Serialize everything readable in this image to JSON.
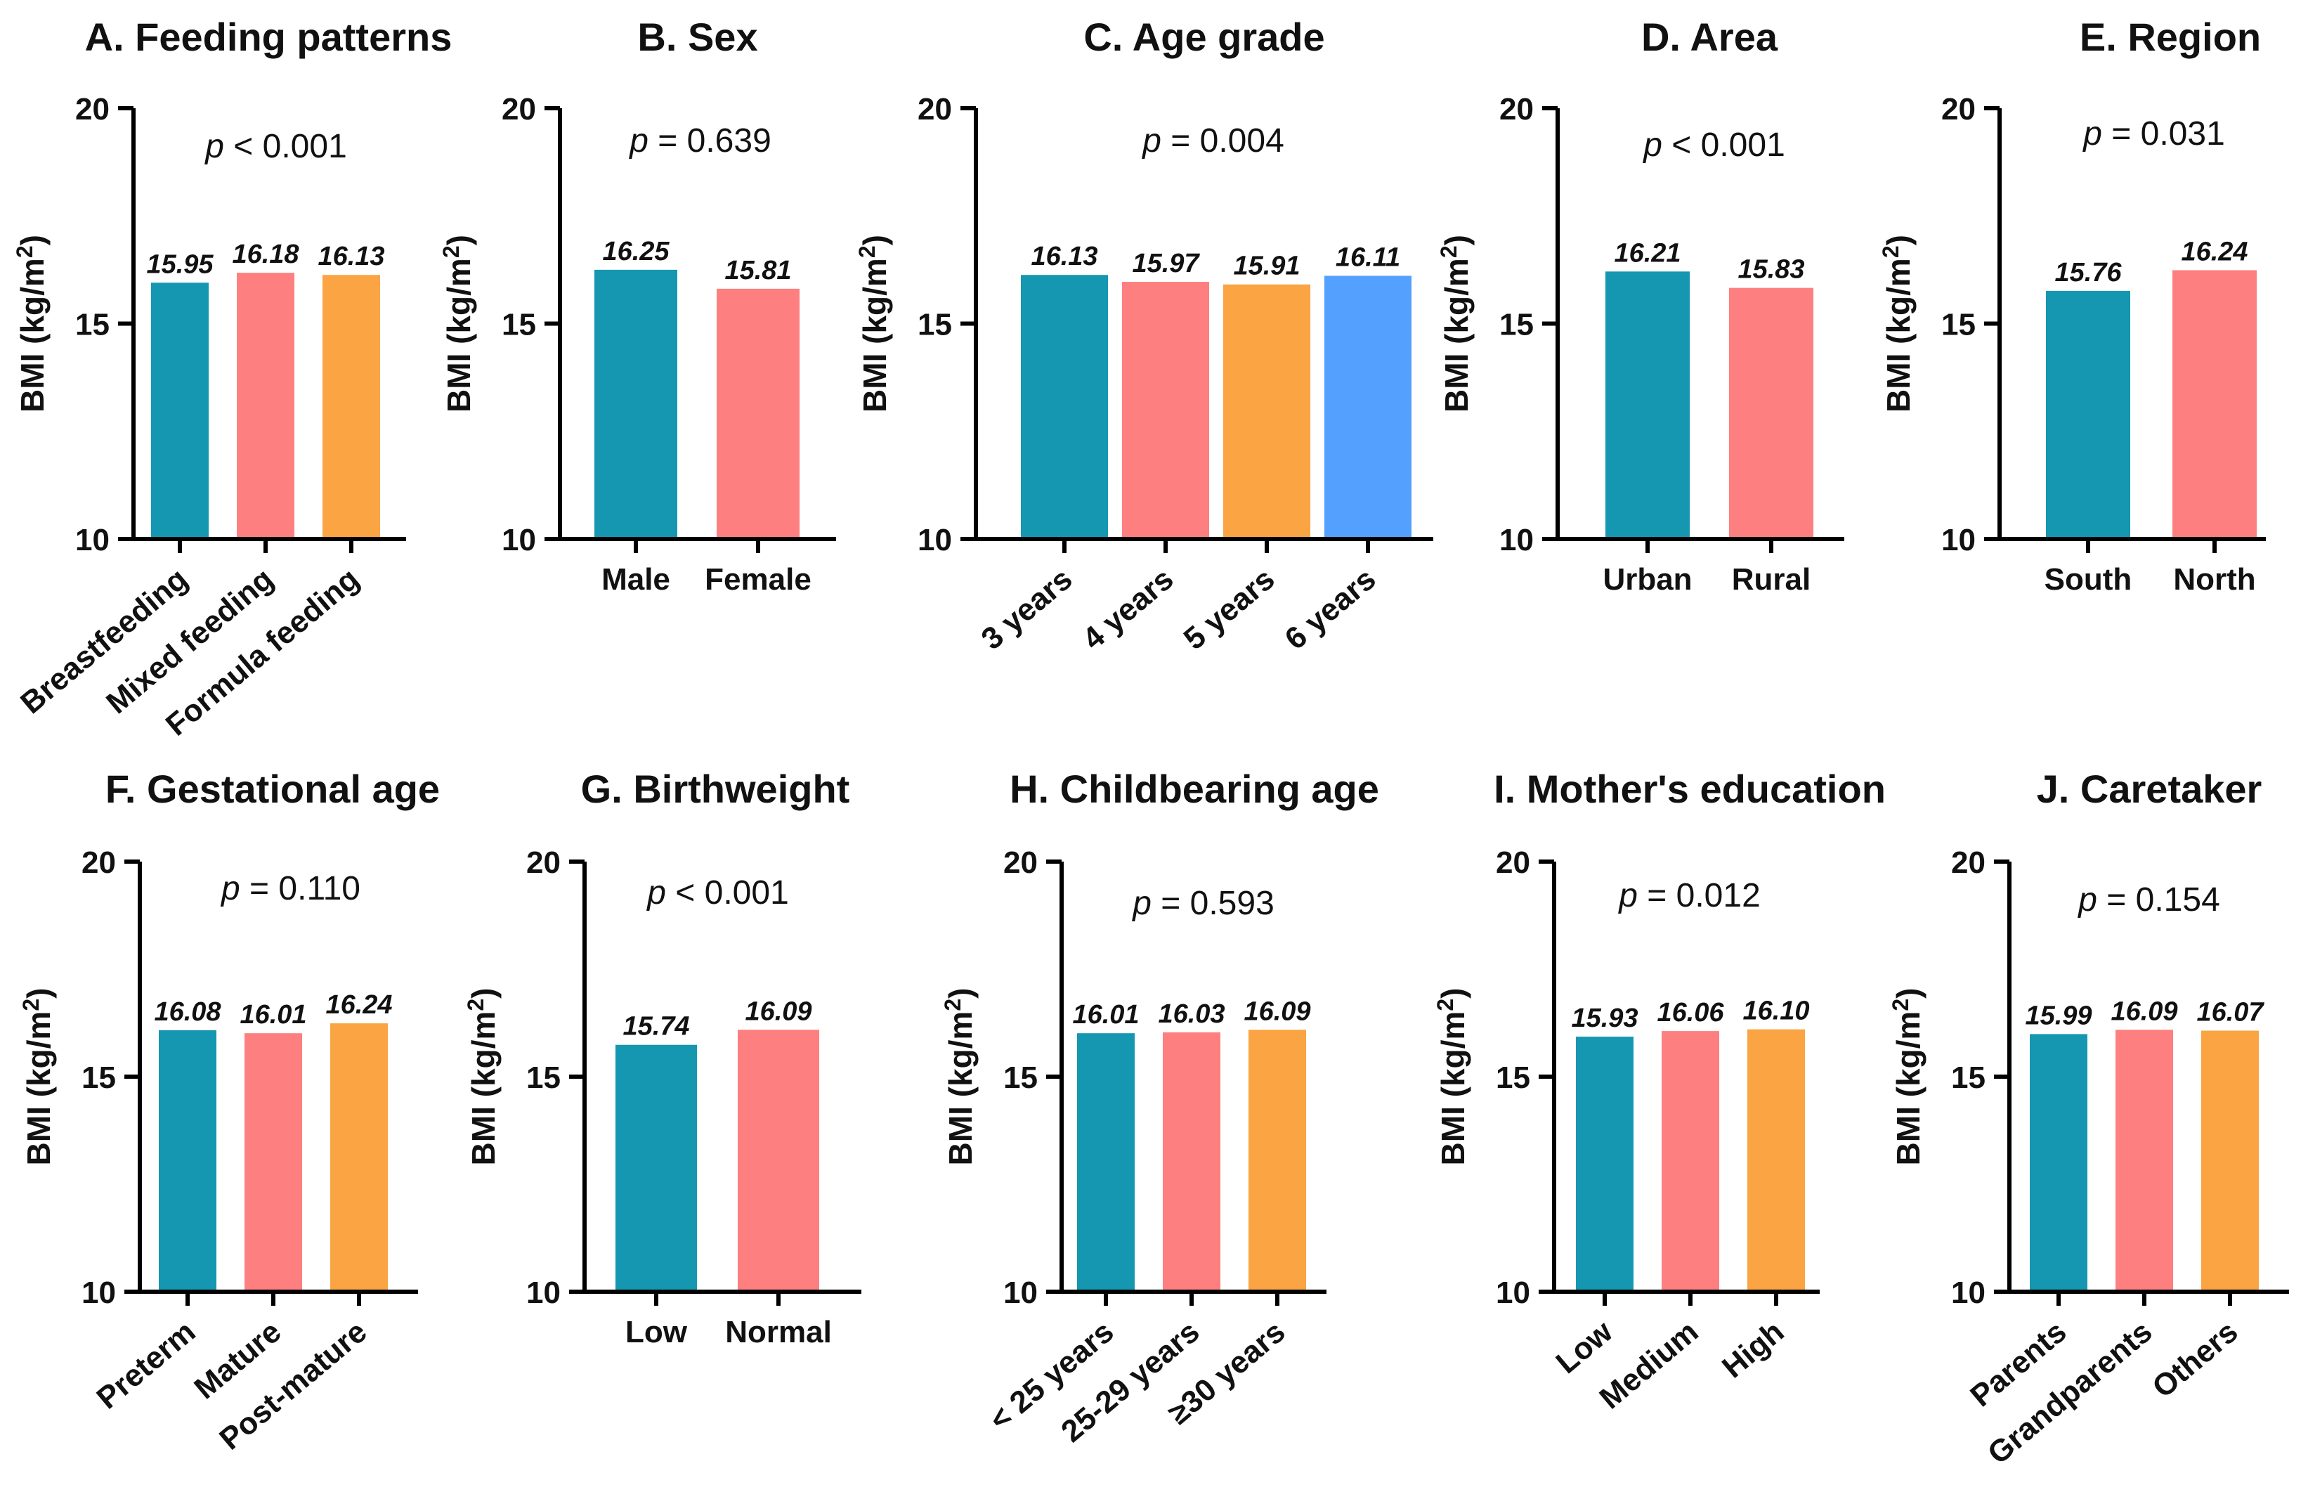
{
  "colors": [
    "#1597b1",
    "#fd7f7f",
    "#fba443",
    "#54a0fe"
  ],
  "y_axis": {
    "label_prefix": "BMI (kg/m",
    "label_sup": "2",
    "label_suffix": ")",
    "ticks": [
      10,
      15,
      20
    ]
  },
  "chart_data": [
    {
      "type": "bar",
      "title": "A. Feeding patterns",
      "p_symbol": "p",
      "p_text": "< 0.001",
      "ylabel": "BMI (kg/m2)",
      "ylim": [
        10,
        20
      ],
      "rotated": true,
      "categories": [
        "Breastfeeding",
        "Mixed feeding",
        "Formula feeding"
      ],
      "values": [
        15.95,
        16.18,
        16.13
      ],
      "value_labels": [
        "15.95",
        "16.18",
        "16.13"
      ]
    },
    {
      "type": "bar",
      "title": "B. Sex",
      "p_symbol": "p",
      "p_text": "= 0.639",
      "ylabel": "BMI (kg/m2)",
      "ylim": [
        10,
        20
      ],
      "rotated": false,
      "categories": [
        "Male",
        "Female"
      ],
      "values": [
        16.25,
        15.81
      ],
      "value_labels": [
        "16.25",
        "15.81"
      ]
    },
    {
      "type": "bar",
      "title": "C. Age grade",
      "p_symbol": "p",
      "p_text": "= 0.004",
      "ylabel": "BMI (kg/m2)",
      "ylim": [
        10,
        20
      ],
      "rotated": true,
      "categories": [
        "3 years",
        "4 years",
        "5 years",
        "6 years"
      ],
      "values": [
        16.13,
        15.97,
        15.91,
        16.11
      ],
      "value_labels": [
        "16.13",
        "15.97",
        "15.91",
        "16.11"
      ]
    },
    {
      "type": "bar",
      "title": "D. Area",
      "p_symbol": "p",
      "p_text": "< 0.001",
      "ylabel": "BMI (kg/m2)",
      "ylim": [
        10,
        20
      ],
      "rotated": false,
      "categories": [
        "Urban",
        "Rural"
      ],
      "values": [
        16.21,
        15.83
      ],
      "value_labels": [
        "16.21",
        "15.83"
      ]
    },
    {
      "type": "bar",
      "title": "E. Region",
      "p_symbol": "p",
      "p_text": "= 0.031",
      "ylabel": "BMI (kg/m2)",
      "ylim": [
        10,
        20
      ],
      "rotated": false,
      "categories": [
        "South",
        "North"
      ],
      "values": [
        15.76,
        16.24
      ],
      "value_labels": [
        "15.76",
        "16.24"
      ]
    },
    {
      "type": "bar",
      "title": "F. Gestational age",
      "p_symbol": "p",
      "p_text": "= 0.110",
      "ylabel": "BMI (kg/m2)",
      "ylim": [
        10,
        20
      ],
      "rotated": true,
      "categories": [
        "Preterm",
        "Mature",
        "Post-mature"
      ],
      "values": [
        16.08,
        16.01,
        16.24
      ],
      "value_labels": [
        "16.08",
        "16.01",
        "16.24"
      ]
    },
    {
      "type": "bar",
      "title": "G. Birthweight",
      "p_symbol": "p",
      "p_text": "< 0.001",
      "ylabel": "BMI (kg/m2)",
      "ylim": [
        10,
        20
      ],
      "rotated": false,
      "categories": [
        "Low",
        "Normal"
      ],
      "values": [
        15.74,
        16.09
      ],
      "value_labels": [
        "15.74",
        "16.09"
      ]
    },
    {
      "type": "bar",
      "title": "H. Childbearing age",
      "p_symbol": "p",
      "p_text": "= 0.593",
      "ylabel": "BMI (kg/m2)",
      "ylim": [
        10,
        20
      ],
      "rotated": true,
      "categories": [
        "< 25 years",
        "25-29 years",
        "≥30 years"
      ],
      "values": [
        16.01,
        16.03,
        16.09
      ],
      "value_labels": [
        "16.01",
        "16.03",
        "16.09"
      ]
    },
    {
      "type": "bar",
      "title": "I. Mother's education",
      "p_symbol": "p",
      "p_text": "= 0.012",
      "ylabel": "BMI (kg/m2)",
      "ylim": [
        10,
        20
      ],
      "rotated": true,
      "categories": [
        "Low",
        "Medium",
        "High"
      ],
      "values": [
        15.93,
        16.06,
        16.1
      ],
      "value_labels": [
        "15.93",
        "16.06",
        "16.10"
      ]
    },
    {
      "type": "bar",
      "title": "J. Caretaker",
      "p_symbol": "p",
      "p_text": "= 0.154",
      "ylabel": "BMI (kg/m2)",
      "ylim": [
        10,
        20
      ],
      "rotated": true,
      "categories": [
        "Parents",
        "Grandparents",
        "Others"
      ],
      "values": [
        15.99,
        16.09,
        16.07
      ],
      "value_labels": [
        "15.99",
        "16.09",
        "16.07"
      ]
    }
  ]
}
